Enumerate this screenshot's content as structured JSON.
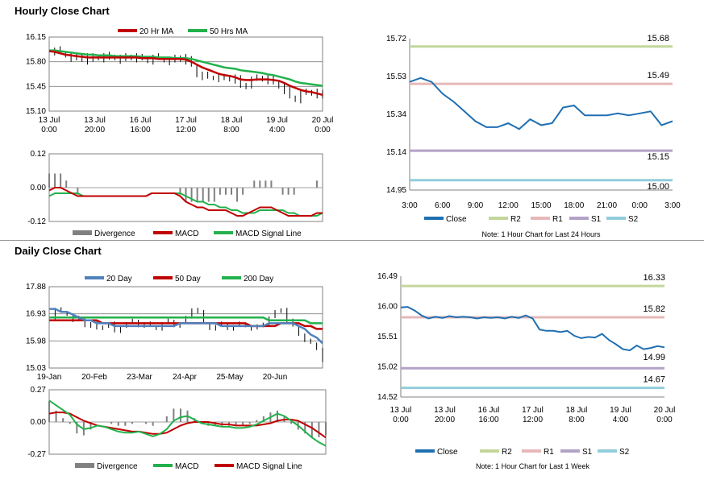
{
  "sections": {
    "hourly_title": "Hourly Close Chart",
    "daily_title": "Daily Close Chart"
  },
  "colors": {
    "red": "#c00000",
    "green": "#22b14c",
    "blue": "#4f81bd",
    "navy": "#1f6fb2",
    "r2": "#c3d69b",
    "r1": "#e6b9b8",
    "s1": "#b3a2c7",
    "s2": "#92cddc",
    "grey": "#808080"
  },
  "chart_data": [
    {
      "id": "hourly_price",
      "type": "line",
      "legend": [
        "20 Hr MA",
        "50 Hrs MA"
      ],
      "ylim": [
        15.1,
        16.15
      ],
      "yticks": [
        "16.15",
        "15.80",
        "15.45",
        "15.10"
      ],
      "xticks": [
        [
          "13 Jul",
          "0:00"
        ],
        [
          "13 Jul",
          "20:00"
        ],
        [
          "16 Jul",
          "16:00"
        ],
        [
          "17 Jul",
          "12:00"
        ],
        [
          "18 Jul",
          "8:00"
        ],
        [
          "19 Jul",
          "4:00"
        ],
        [
          "20 Jul",
          "0:00"
        ]
      ],
      "close": [
        15.95,
        15.96,
        15.93,
        15.9,
        15.86,
        15.84,
        15.88,
        15.82,
        15.86,
        15.88,
        15.85,
        15.88,
        15.86,
        15.83,
        15.86,
        15.88,
        15.85,
        15.84,
        15.82,
        15.86,
        15.85,
        15.83,
        15.81,
        15.84,
        15.87,
        15.82,
        15.75,
        15.62,
        15.6,
        15.58,
        15.58,
        15.57,
        15.56,
        15.58,
        15.55,
        15.45,
        15.48,
        15.55,
        15.56,
        15.58,
        15.54,
        15.5,
        15.46,
        15.4,
        15.3,
        15.27,
        15.35,
        15.36,
        15.38,
        15.34,
        15.3
      ],
      "ma20": [
        15.95,
        15.94,
        15.92,
        15.9,
        15.89,
        15.88,
        15.87,
        15.86,
        15.86,
        15.86,
        15.86,
        15.86,
        15.86,
        15.86,
        15.86,
        15.86,
        15.86,
        15.85,
        15.85,
        15.85,
        15.84,
        15.84,
        15.84,
        15.84,
        15.84,
        15.83,
        15.8,
        15.76,
        15.72,
        15.69,
        15.66,
        15.63,
        15.61,
        15.6,
        15.58,
        15.55,
        15.54,
        15.54,
        15.55,
        15.55,
        15.55,
        15.54,
        15.53,
        15.5,
        15.46,
        15.43,
        15.4,
        15.38,
        15.37,
        15.35,
        15.33
      ],
      "ma50": [
        15.96,
        15.96,
        15.95,
        15.94,
        15.93,
        15.92,
        15.91,
        15.9,
        15.9,
        15.89,
        15.89,
        15.89,
        15.88,
        15.88,
        15.88,
        15.88,
        15.88,
        15.87,
        15.87,
        15.87,
        15.86,
        15.86,
        15.86,
        15.85,
        15.85,
        15.85,
        15.84,
        15.82,
        15.8,
        15.78,
        15.76,
        15.74,
        15.72,
        15.71,
        15.7,
        15.68,
        15.67,
        15.66,
        15.65,
        15.64,
        15.62,
        15.61,
        15.59,
        15.57,
        15.55,
        15.52,
        15.5,
        15.49,
        15.48,
        15.47,
        15.46
      ]
    },
    {
      "id": "hourly_macd",
      "type": "line",
      "legend": [
        "Divergence",
        "MACD",
        "MACD Signal Line"
      ],
      "ylim": [
        -0.12,
        0.12
      ],
      "yticks": [
        "0.12",
        "0.00",
        "-0.12"
      ],
      "macd": [
        -0.01,
        0.0,
        0.0,
        -0.01,
        -0.02,
        -0.03,
        -0.03,
        -0.03,
        -0.03,
        -0.03,
        -0.03,
        -0.03,
        -0.03,
        -0.03,
        -0.03,
        -0.03,
        -0.03,
        -0.03,
        -0.02,
        -0.02,
        -0.02,
        -0.02,
        -0.02,
        -0.03,
        -0.05,
        -0.06,
        -0.07,
        -0.07,
        -0.08,
        -0.08,
        -0.08,
        -0.08,
        -0.09,
        -0.1,
        -0.1,
        -0.09,
        -0.08,
        -0.07,
        -0.07,
        -0.07,
        -0.08,
        -0.09,
        -0.1,
        -0.1,
        -0.1,
        -0.1,
        -0.1,
        -0.09,
        -0.09
      ],
      "signal": [
        -0.03,
        -0.02,
        -0.02,
        -0.02,
        -0.02,
        -0.02,
        -0.03,
        -0.03,
        -0.03,
        -0.03,
        -0.03,
        -0.03,
        -0.03,
        -0.03,
        -0.03,
        -0.03,
        -0.03,
        -0.03,
        -0.02,
        -0.02,
        -0.02,
        -0.02,
        -0.02,
        -0.02,
        -0.03,
        -0.04,
        -0.05,
        -0.05,
        -0.06,
        -0.06,
        -0.07,
        -0.07,
        -0.08,
        -0.08,
        -0.09,
        -0.09,
        -0.09,
        -0.08,
        -0.08,
        -0.08,
        -0.08,
        -0.08,
        -0.09,
        -0.09,
        -0.1,
        -0.1,
        -0.1,
        -0.1,
        -0.09
      ]
    },
    {
      "id": "hourly_pivot",
      "type": "line",
      "ylim": [
        14.95,
        15.72
      ],
      "yticks": [
        "15.72",
        "15.53",
        "15.34",
        "15.14",
        "14.95"
      ],
      "xticks": [
        "3:00",
        "6:00",
        "9:00",
        "12:00",
        "15:00",
        "18:00",
        "21:00",
        "0:00",
        "3:00"
      ],
      "levels": {
        "R2": 15.68,
        "R1": 15.49,
        "S1": 15.15,
        "S2": 15.0
      },
      "level_labels": [
        "15.68",
        "15.49",
        "15.15",
        "15.00"
      ],
      "close": [
        15.5,
        15.52,
        15.5,
        15.44,
        15.4,
        15.35,
        15.3,
        15.27,
        15.27,
        15.29,
        15.26,
        15.31,
        15.28,
        15.29,
        15.37,
        15.38,
        15.33,
        15.33,
        15.33,
        15.34,
        15.33,
        15.34,
        15.35,
        15.28,
        15.3
      ],
      "legend": [
        "Close",
        "R2",
        "R1",
        "S1",
        "S2"
      ],
      "note": "Note: 1 Hour Chart for Last 24 Hours"
    },
    {
      "id": "daily_price",
      "type": "line",
      "legend": [
        "20 Day",
        "50 Day",
        "200 Day"
      ],
      "ylim": [
        15.03,
        17.88
      ],
      "yticks": [
        "17.88",
        "16.93",
        "15.98",
        "15.03"
      ],
      "xticks": [
        "19-Jan",
        "20-Feb",
        "23-Mar",
        "24-Apr",
        "25-May",
        "20-Jun"
      ],
      "close": [
        16.8,
        17.1,
        17.0,
        16.9,
        16.7,
        16.8,
        16.5,
        16.6,
        16.4,
        16.5,
        16.6,
        16.3,
        16.5,
        16.6,
        16.7,
        16.5,
        16.6,
        16.5,
        16.4,
        16.6,
        16.7,
        16.5,
        16.6,
        16.8,
        17.1,
        17.0,
        16.6,
        16.4,
        16.5,
        16.6,
        16.4,
        16.5,
        16.6,
        16.5,
        16.4,
        16.5,
        16.6,
        16.8,
        17.0,
        17.1,
        16.7,
        16.5,
        16.2,
        16.0,
        15.9,
        15.7,
        15.3
      ],
      "ma20": [
        17.1,
        17.1,
        17.0,
        17.0,
        16.9,
        16.8,
        16.7,
        16.7,
        16.6,
        16.6,
        16.6,
        16.5,
        16.5,
        16.5,
        16.5,
        16.5,
        16.5,
        16.5,
        16.5,
        16.5,
        16.5,
        16.5,
        16.6,
        16.6,
        16.6,
        16.6,
        16.6,
        16.6,
        16.6,
        16.5,
        16.5,
        16.5,
        16.5,
        16.5,
        16.5,
        16.5,
        16.5,
        16.6,
        16.6,
        16.6,
        16.6,
        16.6,
        16.5,
        16.4,
        16.2,
        16.1,
        15.9
      ],
      "ma50": [
        16.7,
        16.7,
        16.7,
        16.7,
        16.7,
        16.7,
        16.7,
        16.7,
        16.7,
        16.6,
        16.6,
        16.6,
        16.6,
        16.6,
        16.6,
        16.6,
        16.6,
        16.6,
        16.6,
        16.6,
        16.6,
        16.6,
        16.6,
        16.6,
        16.6,
        16.6,
        16.6,
        16.6,
        16.6,
        16.6,
        16.6,
        16.6,
        16.6,
        16.6,
        16.5,
        16.5,
        16.5,
        16.5,
        16.5,
        16.6,
        16.6,
        16.6,
        16.6,
        16.5,
        16.5,
        16.4,
        16.4
      ],
      "ma200": [
        16.8,
        16.8,
        16.8,
        16.8,
        16.8,
        16.8,
        16.8,
        16.8,
        16.8,
        16.8,
        16.8,
        16.8,
        16.8,
        16.8,
        16.8,
        16.8,
        16.8,
        16.8,
        16.8,
        16.8,
        16.8,
        16.8,
        16.8,
        16.8,
        16.8,
        16.8,
        16.8,
        16.8,
        16.8,
        16.8,
        16.8,
        16.8,
        16.8,
        16.8,
        16.8,
        16.8,
        16.8,
        16.7,
        16.7,
        16.7,
        16.7,
        16.7,
        16.7,
        16.7,
        16.6,
        16.6,
        16.6
      ]
    },
    {
      "id": "daily_macd",
      "type": "line",
      "legend": [
        "Divergence",
        "MACD",
        "MACD Signal Line"
      ],
      "ylim": [
        -0.27,
        0.27
      ],
      "yticks": [
        "0.27",
        "0.00",
        "-0.27"
      ],
      "macd": [
        0.18,
        0.14,
        0.1,
        0.06,
        -0.02,
        -0.06,
        -0.05,
        -0.03,
        -0.04,
        -0.06,
        -0.08,
        -0.09,
        -0.09,
        -0.08,
        -0.1,
        -0.12,
        -0.1,
        -0.06,
        0.01,
        0.04,
        0.05,
        0.02,
        -0.01,
        -0.02,
        -0.03,
        -0.04,
        -0.04,
        -0.05,
        -0.05,
        -0.04,
        -0.02,
        0.01,
        0.04,
        0.07,
        0.05,
        0.01,
        -0.03,
        -0.08,
        -0.13,
        -0.17,
        -0.2
      ],
      "signal": [
        0.07,
        0.08,
        0.08,
        0.07,
        0.04,
        0.01,
        -0.01,
        -0.03,
        -0.04,
        -0.05,
        -0.06,
        -0.07,
        -0.08,
        -0.08,
        -0.09,
        -0.1,
        -0.1,
        -0.09,
        -0.06,
        -0.03,
        -0.01,
        0.0,
        0.0,
        0.0,
        -0.01,
        -0.02,
        -0.02,
        -0.03,
        -0.03,
        -0.03,
        -0.03,
        -0.02,
        -0.01,
        0.01,
        0.02,
        0.02,
        0.01,
        -0.02,
        -0.05,
        -0.09,
        -0.13
      ]
    },
    {
      "id": "daily_pivot",
      "type": "line",
      "ylim": [
        14.52,
        16.49
      ],
      "yticks": [
        "16.49",
        "16.00",
        "15.51",
        "15.02",
        "14.52"
      ],
      "xticks": [
        [
          "13 Jul",
          "0:00"
        ],
        [
          "13 Jul",
          "20:00"
        ],
        [
          "16 Jul",
          "16:00"
        ],
        [
          "17 Jul",
          "12:00"
        ],
        [
          "18 Jul",
          "8:00"
        ],
        [
          "19 Jul",
          "4:00"
        ],
        [
          "20 Jul",
          "0:00"
        ]
      ],
      "levels": {
        "R2": 16.33,
        "R1": 15.82,
        "S1": 14.99,
        "S2": 14.67
      },
      "level_labels": [
        "16.33",
        "15.82",
        "14.99",
        "14.67"
      ],
      "close": [
        15.98,
        15.99,
        15.93,
        15.85,
        15.8,
        15.83,
        15.81,
        15.84,
        15.82,
        15.83,
        15.82,
        15.8,
        15.82,
        15.81,
        15.82,
        15.8,
        15.83,
        15.81,
        15.85,
        15.8,
        15.62,
        15.6,
        15.6,
        15.58,
        15.6,
        15.52,
        15.48,
        15.5,
        15.49,
        15.55,
        15.45,
        15.38,
        15.3,
        15.28,
        15.36,
        15.3,
        15.32,
        15.35,
        15.33
      ],
      "legend": [
        "Close",
        "R2",
        "R1",
        "S1",
        "S2"
      ],
      "note": "Note: 1 Hour Chart for Last 1 Week"
    }
  ]
}
